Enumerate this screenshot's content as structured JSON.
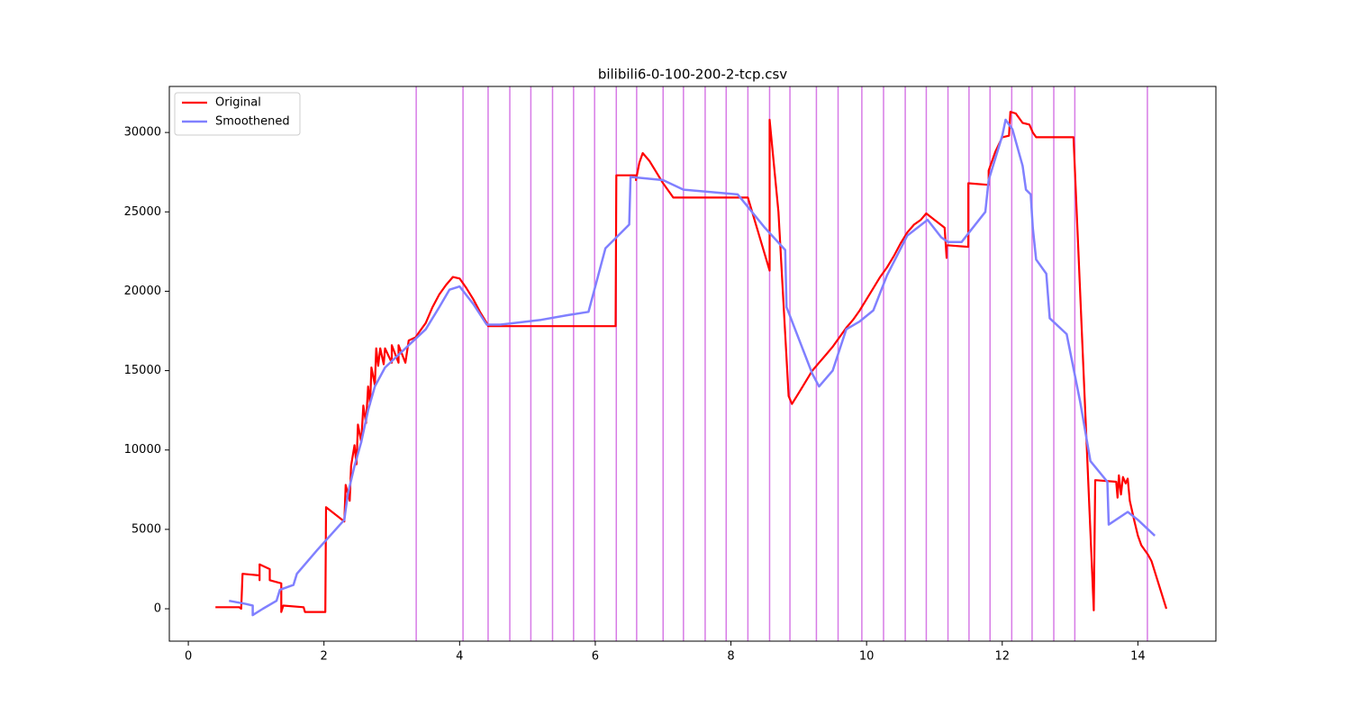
{
  "chart_data": {
    "type": "line",
    "title": "bilibili6-0-100-200-2-tcp.csv",
    "xlim": [
      -0.28,
      15.15
    ],
    "ylim": [
      -2040,
      32900
    ],
    "xticks": [
      0,
      2,
      4,
      6,
      8,
      10,
      12,
      14
    ],
    "yticks": [
      0,
      5000,
      10000,
      15000,
      20000,
      25000,
      30000
    ],
    "legend": "upper left",
    "vlines": {
      "color": "#d77be6",
      "x": [
        3.36,
        4.05,
        4.42,
        4.74,
        5.05,
        5.37,
        5.68,
        5.99,
        6.31,
        6.61,
        7.0,
        7.3,
        7.62,
        7.93,
        8.25,
        8.57,
        8.87,
        9.26,
        9.58,
        9.93,
        10.25,
        10.57,
        10.88,
        11.2,
        11.51,
        11.82,
        12.14,
        12.44,
        12.76,
        13.07,
        14.14
      ]
    },
    "series": [
      {
        "name": "Original",
        "color": "#ff0000",
        "width": 2.2,
        "x": [
          0.4,
          0.75,
          0.78,
          0.8,
          1.05,
          1.05,
          1.05,
          1.2,
          1.2,
          1.37,
          1.37,
          1.4,
          1.7,
          1.72,
          2.02,
          2.03,
          2.3,
          2.32,
          2.38,
          2.4,
          2.45,
          2.48,
          2.5,
          2.55,
          2.58,
          2.62,
          2.65,
          2.68,
          2.7,
          2.75,
          2.77,
          2.8,
          2.83,
          2.88,
          2.9,
          3.0,
          3.0,
          3.1,
          3.1,
          3.2,
          3.25,
          3.35,
          3.4,
          3.5,
          3.6,
          3.7,
          3.8,
          3.9,
          4.0,
          4.1,
          4.2,
          4.3,
          4.4,
          4.42,
          6.3,
          6.31,
          6.6,
          6.6,
          6.65,
          6.7,
          6.8,
          6.9,
          7.0,
          7.1,
          7.15,
          8.25,
          8.57,
          8.57,
          8.7,
          8.85,
          8.9,
          9.0,
          9.1,
          9.2,
          9.3,
          9.4,
          9.5,
          9.6,
          9.7,
          9.8,
          9.9,
          10.0,
          10.1,
          10.2,
          10.3,
          10.4,
          10.5,
          10.6,
          10.7,
          10.8,
          10.88,
          11.0,
          11.15,
          11.18,
          11.18,
          11.5,
          11.5,
          11.8,
          11.8,
          11.9,
          12.0,
          12.1,
          12.12,
          12.2,
          12.3,
          12.4,
          12.45,
          12.5,
          13.05,
          13.35,
          13.37,
          13.68,
          13.7,
          13.72,
          13.75,
          13.78,
          13.82,
          13.85,
          13.88,
          13.95,
          14.0,
          14.05,
          14.1,
          14.15,
          14.2,
          14.42
        ],
        "values": [
          100,
          100,
          0,
          2200,
          2100,
          1800,
          2800,
          2500,
          1800,
          1600,
          -200,
          200,
          100,
          -200,
          -200,
          6400,
          5500,
          7800,
          6800,
          9000,
          10300,
          9100,
          11600,
          10500,
          12800,
          11700,
          14000,
          12900,
          15200,
          14100,
          16400,
          15300,
          16400,
          15400,
          16400,
          15500,
          16600,
          15500,
          16600,
          15500,
          16900,
          17100,
          17400,
          18000,
          19000,
          19800,
          20400,
          20900,
          20800,
          20200,
          19500,
          18700,
          18000,
          17800,
          17800,
          27300,
          27300,
          27000,
          28100,
          28700,
          28200,
          27500,
          26800,
          26200,
          25900,
          25900,
          21300,
          30800,
          25000,
          13400,
          12900,
          13600,
          14300,
          15000,
          15500,
          16000,
          16500,
          17100,
          17700,
          18200,
          18800,
          19500,
          20200,
          20900,
          21500,
          22200,
          23000,
          23700,
          24200,
          24500,
          24900,
          24500,
          24000,
          22100,
          22900,
          22800,
          26800,
          26700,
          27600,
          28800,
          29700,
          29800,
          31300,
          31200,
          30600,
          30500,
          30000,
          29700,
          29700,
          -100,
          8100,
          8000,
          7000,
          8400,
          7200,
          8300,
          7900,
          8200,
          6800,
          5500,
          4600,
          4000,
          3700,
          3400,
          3000,
          0
        ]
      },
      {
        "name": "Smoothened",
        "color": "#8080ff",
        "width": 2.5,
        "x": [
          0.6,
          0.85,
          0.95,
          0.95,
          1.1,
          1.3,
          1.35,
          1.55,
          1.6,
          1.9,
          2.3,
          2.35,
          2.45,
          2.55,
          2.65,
          2.75,
          2.9,
          3.1,
          3.3,
          3.5,
          3.7,
          3.85,
          4.0,
          4.2,
          4.4,
          4.6,
          5.2,
          5.6,
          5.9,
          6.15,
          6.5,
          6.52,
          7.0,
          7.3,
          8.1,
          8.5,
          8.8,
          8.82,
          9.2,
          9.3,
          9.5,
          9.7,
          9.9,
          10.1,
          10.3,
          10.6,
          10.9,
          11.1,
          11.2,
          11.4,
          11.75,
          11.8,
          12.0,
          12.05,
          12.15,
          12.3,
          12.35,
          12.42,
          12.45,
          12.5,
          12.65,
          12.7,
          12.95,
          13.15,
          13.3,
          13.55,
          13.57,
          13.85,
          14.0,
          14.25
        ],
        "values": [
          500,
          300,
          200,
          -400,
          0,
          500,
          1200,
          1500,
          2200,
          3700,
          5600,
          7200,
          9000,
          10500,
          12500,
          14000,
          15200,
          16000,
          16800,
          17600,
          19000,
          20100,
          20300,
          19200,
          17900,
          17900,
          18200,
          18500,
          18700,
          22700,
          24200,
          27200,
          27000,
          26400,
          26100,
          24000,
          22600,
          19000,
          14800,
          14000,
          15000,
          17600,
          18100,
          18800,
          21000,
          23500,
          24500,
          23400,
          23100,
          23100,
          25000,
          27000,
          29800,
          30800,
          30200,
          27900,
          26400,
          26100,
          24000,
          22000,
          21100,
          18300,
          17300,
          13000,
          9300,
          8000,
          5300,
          6100,
          5600,
          4600
        ]
      }
    ]
  }
}
